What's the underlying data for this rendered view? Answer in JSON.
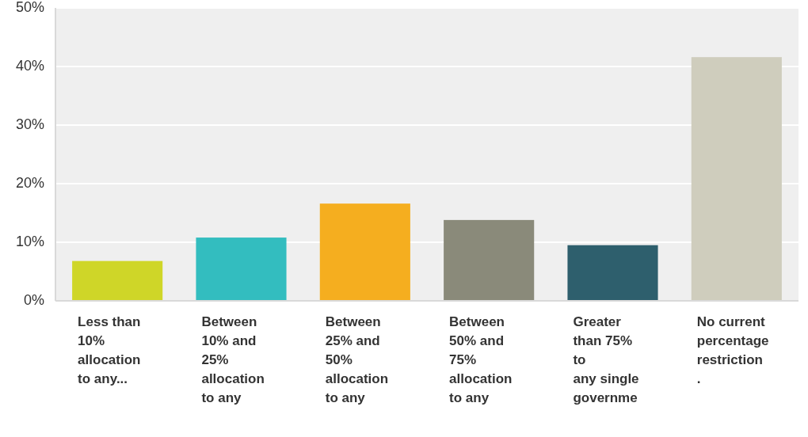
{
  "chart_data": {
    "type": "bar",
    "categories": [
      "Less than\n10%\nallocation\nto any...",
      "Between\n10% and\n25%\nallocation\nto any",
      "Between\n25% and\n50%\nallocation\nto any",
      "Between\n50% and\n75%\nallocation\nto any",
      "Greater\nthan 75%\nto\nany single\ngovernme",
      "No current\npercentage\nrestriction\n."
    ],
    "values": [
      6.8,
      10.8,
      16.6,
      13.8,
      9.5,
      41.6
    ],
    "colors": [
      "#cfd628",
      "#33bdbf",
      "#f5ae1f",
      "#8a8a7a",
      "#2e5f6d",
      "#cfcdbd"
    ],
    "ylim": [
      0,
      50
    ],
    "yticks": [
      {
        "value": 0,
        "label": "0%"
      },
      {
        "value": 10,
        "label": "10%"
      },
      {
        "value": 20,
        "label": "20%"
      },
      {
        "value": 30,
        "label": "30%"
      },
      {
        "value": 40,
        "label": "40%"
      },
      {
        "value": 50,
        "label": "50%"
      }
    ],
    "grid": "y"
  }
}
